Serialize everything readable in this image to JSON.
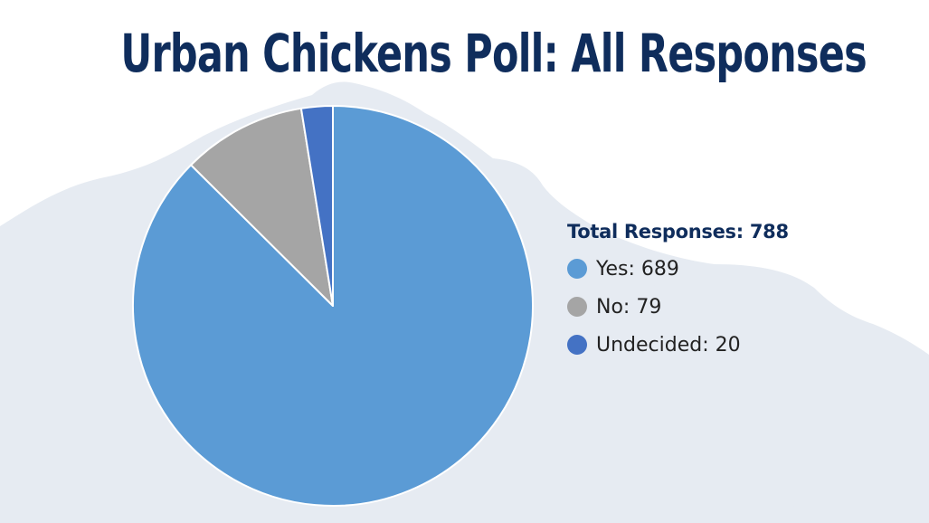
{
  "chart_data": {
    "type": "pie",
    "title": "Urban Chickens Poll: All Responses",
    "total_label": "Total Responses: 788",
    "total": 788,
    "slices": [
      {
        "name": "Yes",
        "value": 689,
        "label": "Yes: 689",
        "color": "#5b9bd5"
      },
      {
        "name": "No",
        "value": 79,
        "label": "No: 79",
        "color": "#a5a5a5"
      },
      {
        "name": "Undecided",
        "value": 20,
        "label": "Undecided: 20",
        "color": "#4472c4"
      }
    ],
    "start_angle": "12 o'clock",
    "direction": "clockwise",
    "legend_position": "right"
  },
  "colors": {
    "title": "#0f2d5c",
    "background_shape": "#e6ebf2"
  }
}
